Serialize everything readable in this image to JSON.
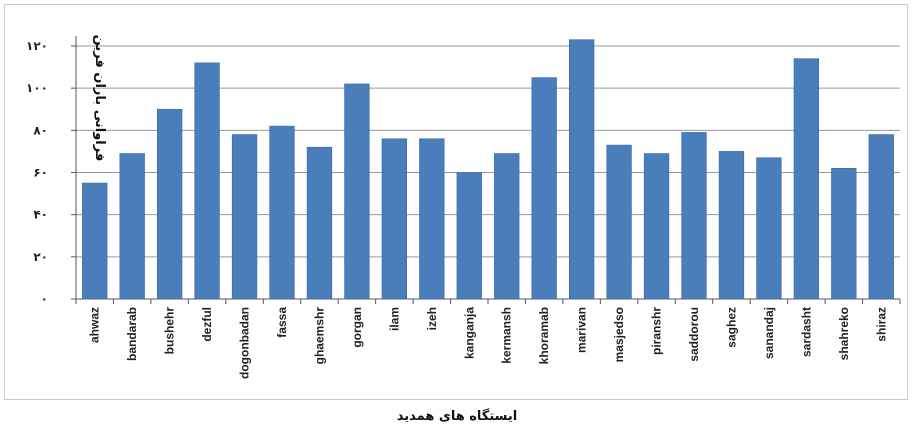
{
  "chart_data": {
    "type": "bar",
    "title": "",
    "xlabel": "ایستگاه های همدید",
    "ylabel": "فراوانی باران فرین",
    "ylim": [
      0,
      120
    ],
    "yticks": [
      0,
      20,
      40,
      60,
      80,
      100,
      120
    ],
    "ytick_labels": [
      "۰",
      "۲۰",
      "۴۰",
      "۶۰",
      "۸۰",
      "۱۰۰",
      "۱۲۰"
    ],
    "grid": "horizontal",
    "legend": "none",
    "bar_color": "#4a7ebb",
    "categories": [
      "ahwaz",
      "bandarab",
      "bushehr",
      "dezful",
      "dogonbadan",
      "fassa",
      "ghaemshr",
      "gorgan",
      "ilam",
      "izeh",
      "kanganja",
      "kermansh",
      "khoramab",
      "marivan",
      "masjedso",
      "piranshr",
      "saddorou",
      "saghez",
      "sanandaj",
      "sardasht",
      "shahreko",
      "shiraz"
    ],
    "values": [
      55,
      69,
      90,
      112,
      78,
      82,
      72,
      102,
      76,
      76,
      60,
      69,
      105,
      123,
      73,
      69,
      79,
      70,
      67,
      114,
      62,
      78
    ]
  }
}
